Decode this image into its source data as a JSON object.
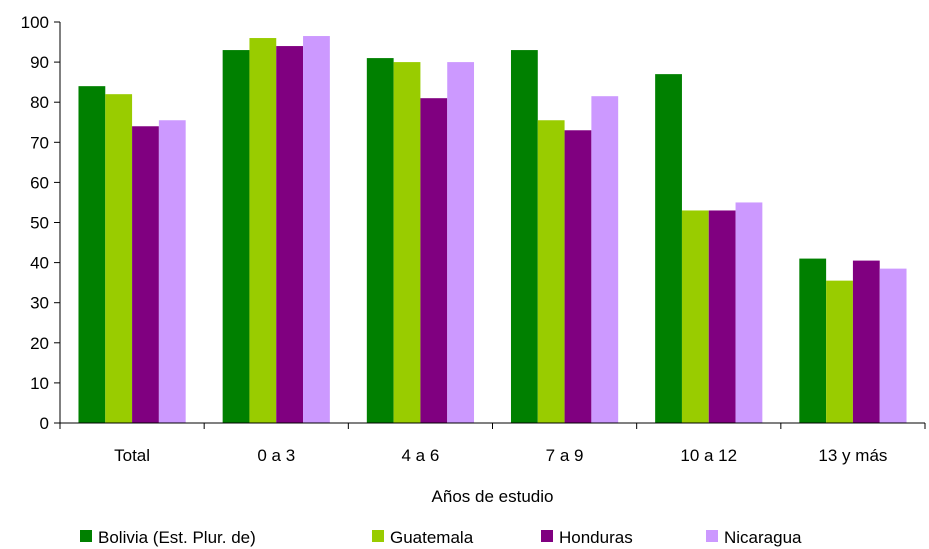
{
  "chart_data": {
    "type": "bar",
    "title": "",
    "xlabel": "Años de estudio",
    "ylabel": "",
    "categories": [
      "Total",
      "0 a 3",
      "4 a 6",
      "7 a 9",
      "10 a 12",
      "13 y más"
    ],
    "ylim": [
      0,
      100
    ],
    "yticks": [
      "0",
      "10",
      "20",
      "30",
      "40",
      "50",
      "60",
      "70",
      "80",
      "90",
      "100"
    ],
    "grid": false,
    "legend_position": "bottom",
    "series": [
      {
        "name": "Bolivia (Est. Plur. de)",
        "color": "#008000",
        "values": [
          84,
          93,
          91,
          93,
          87,
          41
        ]
      },
      {
        "name": "Guatemala",
        "color": "#99cc00",
        "values": [
          82,
          96,
          90,
          75.5,
          53,
          35.5
        ]
      },
      {
        "name": "Honduras",
        "color": "#800080",
        "values": [
          74,
          94,
          81,
          73,
          53,
          40.5
        ]
      },
      {
        "name": "Nicaragua",
        "color": "#cc99ff",
        "values": [
          75.5,
          96.5,
          90,
          81.5,
          55,
          38.5
        ]
      }
    ]
  }
}
